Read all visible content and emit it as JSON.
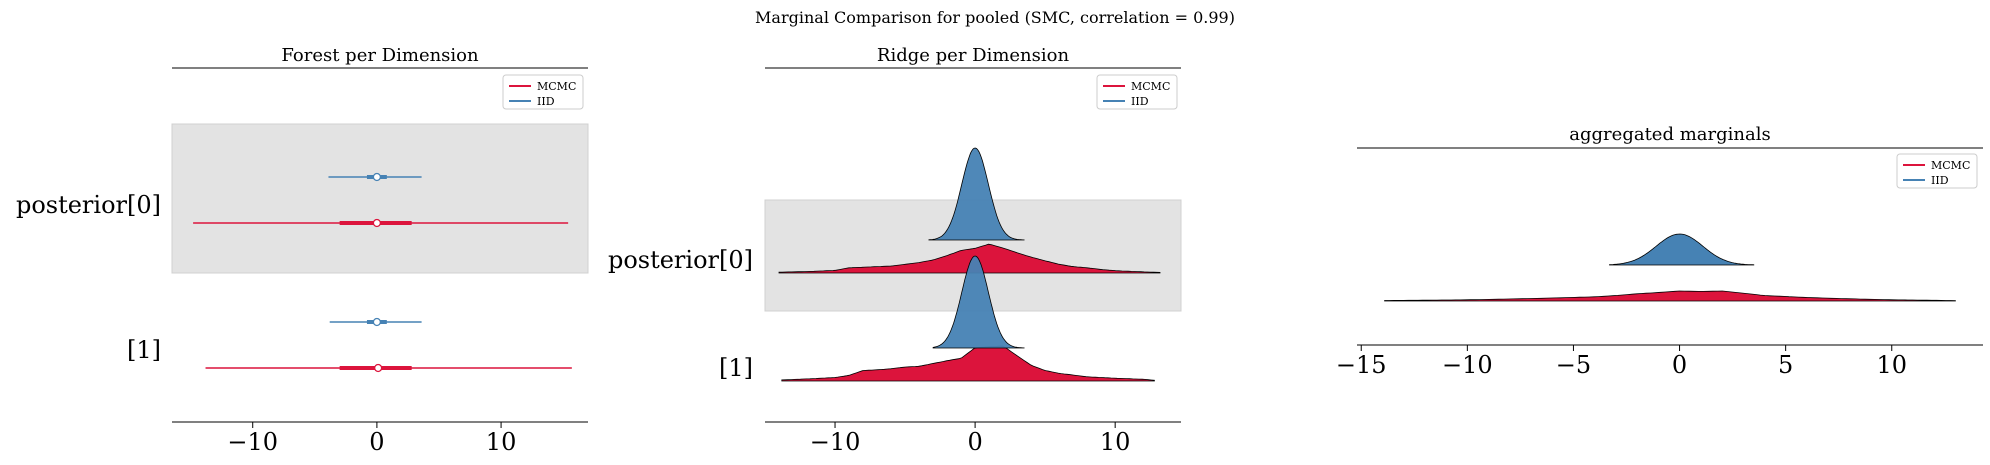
{
  "figure": {
    "suptitle": "Marginal Comparison for pooled (SMC, correlation = 0.99)"
  },
  "colors": {
    "mcmc": "#dc143c",
    "iid": "#4682b4",
    "shade": "#e3e3e3"
  },
  "chart_data": [
    {
      "type": "forest",
      "title": "Forest per Dimension",
      "legend": {
        "placement": "top-right",
        "entries": [
          "MCMC",
          "IID"
        ]
      },
      "xlim": [
        -16.5,
        17
      ],
      "xticks": [
        -10,
        0,
        10
      ],
      "tick_labels": [
        "−10",
        "0",
        "10"
      ],
      "rows": [
        {
          "label": "posterior[0]",
          "shaded": true,
          "series": [
            {
              "name": "IID",
              "hdi": [
                -3.9,
                3.6
              ],
              "iqr": [
                -0.8,
                0.8
              ],
              "median": 0.0
            },
            {
              "name": "MCMC",
              "hdi": [
                -14.8,
                15.4
              ],
              "iqr": [
                -3.0,
                2.8
              ],
              "median": 0.0
            }
          ]
        },
        {
          "label": "[1]",
          "shaded": false,
          "series": [
            {
              "name": "IID",
              "hdi": [
                -3.8,
                3.6
              ],
              "iqr": [
                -0.8,
                0.8
              ],
              "median": 0.0
            },
            {
              "name": "MCMC",
              "hdi": [
                -13.8,
                15.7
              ],
              "iqr": [
                -3.0,
                2.8
              ],
              "median": 0.1
            }
          ]
        }
      ]
    },
    {
      "type": "ridge",
      "title": "Ridge per Dimension",
      "legend": {
        "placement": "top-right",
        "entries": [
          "MCMC",
          "IID"
        ]
      },
      "xlim": [
        -15,
        14.7
      ],
      "xticks": [
        -10,
        0,
        10
      ],
      "tick_labels": [
        "−10",
        "0",
        "10"
      ],
      "rows": [
        {
          "label": "posterior[0]",
          "shaded": true,
          "iid": {
            "range": [
              -3.3,
              3.5
            ],
            "sigma": 0.95,
            "peak": 1.0
          },
          "mcmc": {
            "range": [
              -14.0,
              13.2
            ],
            "peak": 0.33,
            "x": [
              -14,
              -12,
              -10,
              -9,
              -8,
              -7,
              -6,
              -5,
              -4,
              -3,
              -2,
              -1,
              0,
              1,
              2,
              3,
              4,
              5,
              6,
              7,
              8,
              9,
              10,
              11,
              12,
              13.2
            ],
            "y": [
              0.03,
              0.05,
              0.09,
              0.18,
              0.2,
              0.22,
              0.24,
              0.3,
              0.36,
              0.45,
              0.6,
              0.78,
              0.85,
              1.0,
              0.86,
              0.7,
              0.55,
              0.42,
              0.3,
              0.22,
              0.18,
              0.12,
              0.08,
              0.06,
              0.04,
              0.02
            ]
          }
        },
        {
          "label": "[1]",
          "shaded": false,
          "iid": {
            "range": [
              -3.0,
              3.5
            ],
            "sigma": 0.95,
            "peak": 1.0
          },
          "mcmc": {
            "range": [
              -13.8,
              12.8
            ],
            "peak": 0.32,
            "x": [
              -13.8,
              -12,
              -10,
              -9,
              -8,
              -7,
              -6,
              -5,
              -4,
              -3,
              -2,
              -1,
              0,
              1,
              2,
              3,
              4,
              5,
              6,
              7,
              8,
              10,
              12,
              12.8
            ],
            "y": [
              0.03,
              0.06,
              0.1,
              0.16,
              0.3,
              0.32,
              0.35,
              0.4,
              0.42,
              0.5,
              0.58,
              0.65,
              0.95,
              0.98,
              1.0,
              0.72,
              0.45,
              0.3,
              0.22,
              0.17,
              0.12,
              0.08,
              0.05,
              0.02
            ]
          }
        }
      ]
    },
    {
      "type": "area",
      "title": "aggregated marginals",
      "legend": {
        "placement": "top-right",
        "entries": [
          "MCMC",
          "IID"
        ]
      },
      "xlim": [
        -15.2,
        14.3
      ],
      "xticks": [
        -15,
        -10,
        -5,
        0,
        5,
        10
      ],
      "tick_labels": [
        "−15",
        "−10",
        "−5",
        "0",
        "5",
        "10"
      ],
      "iid": {
        "range": [
          -3.3,
          3.5
        ],
        "sigma": 1.1
      },
      "mcmc": {
        "range": [
          -13.9,
          13.0
        ],
        "x": [
          -13.9,
          -12,
          -10,
          -8,
          -6,
          -4,
          -3,
          -2,
          -1,
          0,
          1,
          2,
          3,
          4,
          6,
          8,
          10,
          12,
          13.0
        ],
        "y": [
          0.05,
          0.08,
          0.12,
          0.2,
          0.3,
          0.42,
          0.55,
          0.72,
          0.85,
          1.0,
          0.95,
          1.0,
          0.78,
          0.55,
          0.35,
          0.22,
          0.12,
          0.07,
          0.04
        ]
      }
    }
  ]
}
